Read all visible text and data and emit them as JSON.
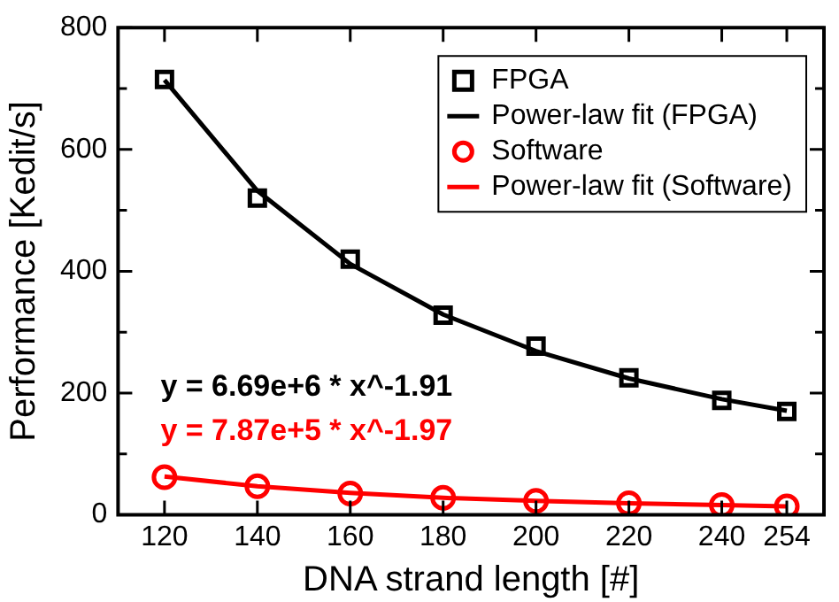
{
  "chart_data": {
    "type": "scatter",
    "xlabel": "DNA strand length [#]",
    "ylabel": "Performance [Kedit/s]",
    "x": [
      120,
      140,
      160,
      180,
      200,
      220,
      240,
      254
    ],
    "series": [
      {
        "name": "FPGA",
        "type": "scatter",
        "color": "#000000",
        "marker": "square",
        "values": [
          715,
          520,
          420,
          328,
          277,
          225,
          188,
          170
        ]
      },
      {
        "name": "Power-law fit (FPGA)",
        "type": "line",
        "color": "#000000",
        "marker": "none",
        "values": [
          714,
          532,
          412,
          329,
          269,
          224,
          190,
          171
        ]
      },
      {
        "name": "Software",
        "type": "scatter",
        "color": "#ff0000",
        "marker": "circle",
        "values": [
          62,
          47,
          35,
          28,
          23,
          19,
          16,
          14
        ]
      },
      {
        "name": "Power-law fit (Software)",
        "type": "line",
        "color": "#ff0000",
        "marker": "none",
        "values": [
          63,
          47,
          36,
          28,
          23,
          19,
          16,
          14
        ]
      }
    ],
    "xlim": [
      110,
      262
    ],
    "xticks": [
      120,
      140,
      160,
      180,
      200,
      220,
      240,
      254
    ],
    "ylim": [
      0,
      800
    ],
    "yticks": [
      0,
      {
        "value": 100,
        "label": null
      },
      200,
      {
        "value": 300,
        "label": null
      },
      400,
      {
        "value": 500,
        "label": null
      },
      600,
      {
        "value": 700,
        "label": null
      },
      800
    ],
    "annotations": [
      "y = 6.69e+6 * x^-1.91",
      "y = 7.87e+5 * x^-1.97"
    ],
    "legend": "top right",
    "grid": false
  }
}
